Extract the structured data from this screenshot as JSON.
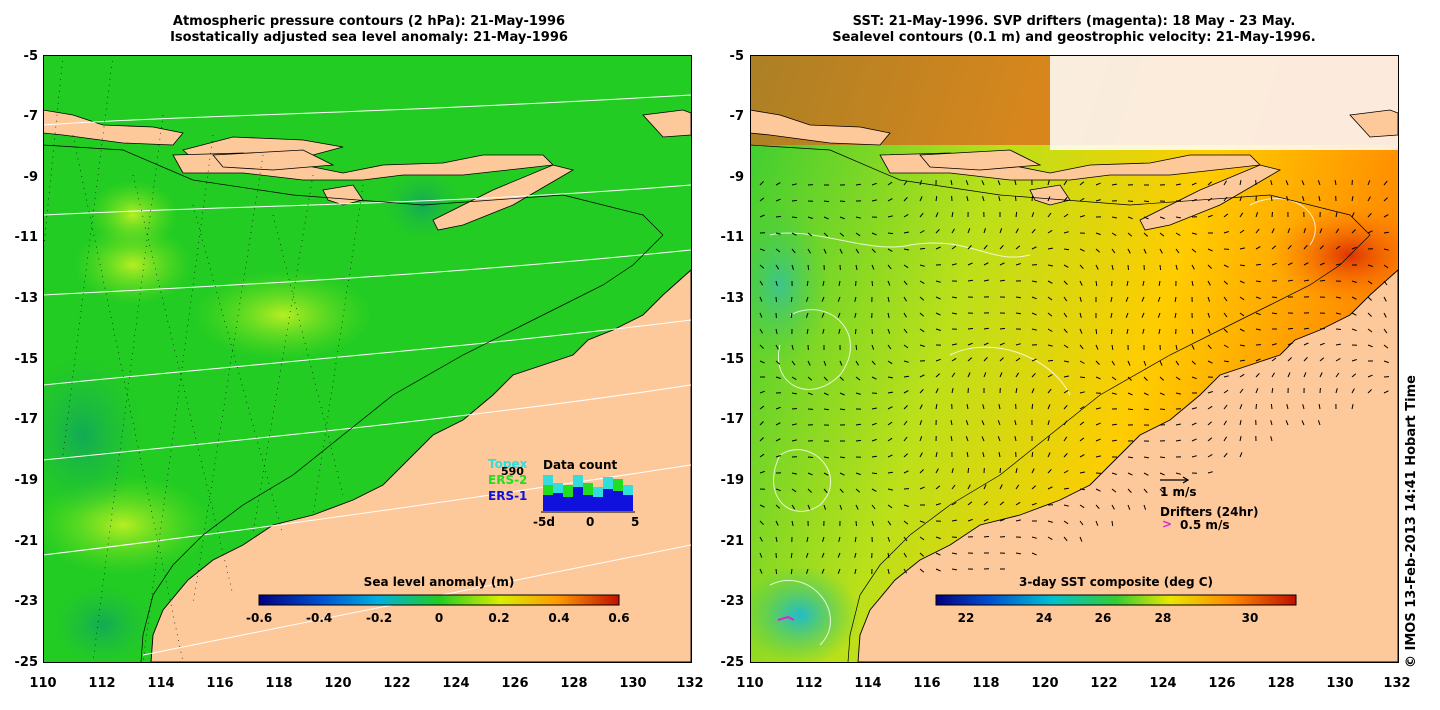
{
  "left_panel": {
    "title_line1": "Atmospheric pressure contours (2 hPa): 21-May-1996",
    "title_line2": "Isostatically adjusted sea level anomaly: 21-May-1996",
    "colorbar_title": "Sea level anomaly (m)",
    "colorbar_ticks": [
      "-0.6",
      "-0.4",
      "-0.2",
      "0",
      "0.2",
      "0.4",
      "0.6"
    ],
    "inset": {
      "title": "Data count",
      "legend_topex": "Topex",
      "legend_ers2": "ERS-2",
      "legend_ers1": "ERS-1",
      "count": "590",
      "axis_labels": [
        "-5d",
        "0",
        "5"
      ]
    },
    "colors": {
      "ocean": "#22cc22",
      "land": "#fdc89a",
      "topex": "#33dddd",
      "ers2": "#22dd22",
      "ers1": "#1111dd"
    }
  },
  "right_panel": {
    "title_line1": "SST: 21-May-1996. SVP drifters (magenta): 18 May - 23 May.",
    "title_line2": "Sealevel contours (0.1 m) and geostrophic velocity: 21-May-1996.",
    "colorbar_title": "3-day SST composite (deg C)",
    "colorbar_ticks": [
      "22",
      "24",
      "26",
      "28",
      "30"
    ],
    "velocity_scale_label": "1 m/s",
    "drifters_label": "Drifters (24hr)",
    "drifter_scale_label": "0.5 m/s",
    "colors": {
      "land": "#fdc89a",
      "drifter": "#dd22dd"
    }
  },
  "axes": {
    "y_ticks": [
      "-5",
      "-7",
      "-9",
      "-11",
      "-13",
      "-15",
      "-17",
      "-19",
      "-21",
      "-23",
      "-25"
    ],
    "x_ticks": [
      "110",
      "112",
      "114",
      "116",
      "118",
      "120",
      "122",
      "124",
      "126",
      "128",
      "130",
      "132"
    ]
  },
  "credit": "© IMOS 13-Feb-2013 14:41 Hobart Time"
}
